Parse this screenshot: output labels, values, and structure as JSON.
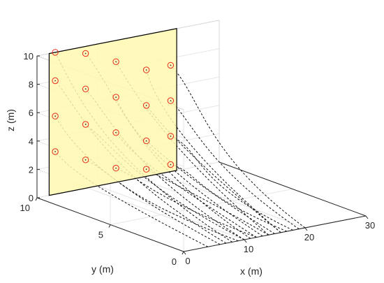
{
  "chart_data": {
    "type": "scatter",
    "xlabel": "x (m)",
    "ylabel": "y (m)",
    "zlabel": "z (m)",
    "xlim": [
      0,
      30
    ],
    "ylim": [
      0,
      10
    ],
    "zlim": [
      0,
      10
    ],
    "xticks": [
      0,
      10,
      20,
      30
    ],
    "yticks": [
      0,
      5,
      10
    ],
    "zticks": [
      0,
      2,
      4,
      6,
      8,
      10
    ],
    "grid": true,
    "colors": {
      "wall": "#fff9b0",
      "anchor": "#e8291c",
      "trajectory": "#111111"
    },
    "wall": {
      "x": [
        2,
        23
      ],
      "y": 10,
      "z": [
        0,
        10
      ]
    },
    "anchors": [
      {
        "x": 3,
        "y": 10,
        "z": 3
      },
      {
        "x": 3,
        "y": 10,
        "z": 5.5
      },
      {
        "x": 3,
        "y": 10,
        "z": 8
      },
      {
        "x": 3,
        "y": 10,
        "z": 10
      },
      {
        "x": 8,
        "y": 10,
        "z": 2
      },
      {
        "x": 8,
        "y": 10,
        "z": 4.5
      },
      {
        "x": 8,
        "y": 10,
        "z": 7
      },
      {
        "x": 8,
        "y": 10,
        "z": 9.5
      },
      {
        "x": 13,
        "y": 10,
        "z": 1
      },
      {
        "x": 13,
        "y": 10,
        "z": 3.5
      },
      {
        "x": 13,
        "y": 10,
        "z": 6
      },
      {
        "x": 13,
        "y": 10,
        "z": 8.5
      },
      {
        "x": 18,
        "y": 10,
        "z": 0.5
      },
      {
        "x": 18,
        "y": 10,
        "z": 2.5
      },
      {
        "x": 18,
        "y": 10,
        "z": 5
      },
      {
        "x": 18,
        "y": 10,
        "z": 7.5
      },
      {
        "x": 22,
        "y": 10,
        "z": 0.5
      },
      {
        "x": 22,
        "y": 10,
        "z": 2.5
      },
      {
        "x": 22,
        "y": 10,
        "z": 5
      },
      {
        "x": 22,
        "y": 10,
        "z": 7.5
      }
    ],
    "trajectory_starts": [
      {
        "x": 4,
        "y": 0,
        "z": 0
      },
      {
        "x": 6,
        "y": 0,
        "z": 0
      },
      {
        "x": 7,
        "y": 0,
        "z": 0
      },
      {
        "x": 8,
        "y": 0,
        "z": 0
      },
      {
        "x": 9,
        "y": 0,
        "z": 0
      },
      {
        "x": 10,
        "y": 0,
        "z": 0
      },
      {
        "x": 10,
        "y": 0,
        "z": 0
      },
      {
        "x": 11,
        "y": 0,
        "z": 0
      },
      {
        "x": 12,
        "y": 0,
        "z": 0
      },
      {
        "x": 12,
        "y": 0,
        "z": 0
      },
      {
        "x": 13,
        "y": 0,
        "z": 0
      },
      {
        "x": 14,
        "y": 0,
        "z": 0
      },
      {
        "x": 14,
        "y": 0,
        "z": 0
      },
      {
        "x": 15,
        "y": 0,
        "z": 0
      },
      {
        "x": 16,
        "y": 0,
        "z": 0
      },
      {
        "x": 16,
        "y": 0,
        "z": 0
      },
      {
        "x": 17,
        "y": 0,
        "z": 0
      },
      {
        "x": 18,
        "y": 0,
        "z": 0
      },
      {
        "x": 19,
        "y": 0,
        "z": 0
      },
      {
        "x": 20,
        "y": 0,
        "z": 0
      }
    ]
  }
}
